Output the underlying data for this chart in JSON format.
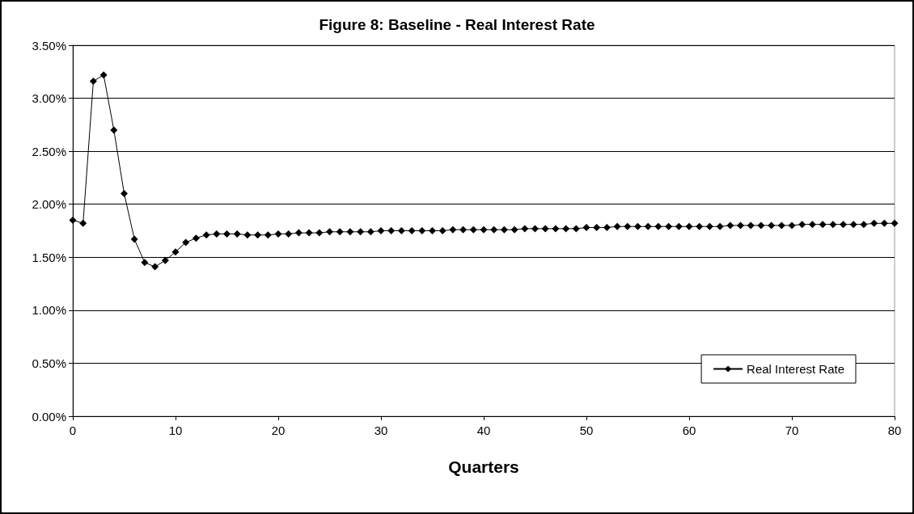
{
  "chart_data": {
    "type": "line",
    "title": "Figure 8: Baseline - Real Interest Rate",
    "xlabel": "Quarters",
    "x": [
      0,
      1,
      2,
      3,
      4,
      5,
      6,
      7,
      8,
      9,
      10,
      11,
      12,
      13,
      14,
      15,
      16,
      17,
      18,
      19,
      20,
      21,
      22,
      23,
      24,
      25,
      26,
      27,
      28,
      29,
      30,
      31,
      32,
      33,
      34,
      35,
      36,
      37,
      38,
      39,
      40,
      41,
      42,
      43,
      44,
      45,
      46,
      47,
      48,
      49,
      50,
      51,
      52,
      53,
      54,
      55,
      56,
      57,
      58,
      59,
      60,
      61,
      62,
      63,
      64,
      65,
      66,
      67,
      68,
      69,
      70,
      71,
      72,
      73,
      74,
      75,
      76,
      77,
      78,
      79,
      80
    ],
    "series": [
      {
        "name": "Real Interest Rate",
        "color": "#000000",
        "values": [
          1.85,
          1.82,
          3.16,
          3.22,
          2.7,
          2.1,
          1.67,
          1.45,
          1.41,
          1.47,
          1.55,
          1.64,
          1.68,
          1.71,
          1.72,
          1.72,
          1.72,
          1.71,
          1.71,
          1.71,
          1.72,
          1.72,
          1.73,
          1.73,
          1.73,
          1.74,
          1.74,
          1.74,
          1.74,
          1.74,
          1.75,
          1.75,
          1.75,
          1.75,
          1.75,
          1.75,
          1.75,
          1.76,
          1.76,
          1.76,
          1.76,
          1.76,
          1.76,
          1.76,
          1.77,
          1.77,
          1.77,
          1.77,
          1.77,
          1.77,
          1.78,
          1.78,
          1.78,
          1.79,
          1.79,
          1.79,
          1.79,
          1.79,
          1.79,
          1.79,
          1.79,
          1.79,
          1.79,
          1.79,
          1.8,
          1.8,
          1.8,
          1.8,
          1.8,
          1.8,
          1.8,
          1.81,
          1.81,
          1.81,
          1.81,
          1.81,
          1.81,
          1.81,
          1.82,
          1.82,
          1.82
        ]
      }
    ],
    "xlim": [
      0,
      80
    ],
    "xticks": [
      0,
      10,
      20,
      30,
      40,
      50,
      60,
      70,
      80
    ],
    "ylim": [
      0,
      3.5
    ],
    "yticks": [
      {
        "value": 0,
        "label": "0.00%"
      },
      {
        "value": 0.5,
        "label": "0.50%"
      },
      {
        "value": 1,
        "label": "1.00%"
      },
      {
        "value": 1.5,
        "label": "1.50%"
      },
      {
        "value": 2,
        "label": "2.00%"
      },
      {
        "value": 2.5,
        "label": "2.50%"
      },
      {
        "value": 3,
        "label": "3.00%"
      },
      {
        "value": 3.5,
        "label": "3.50%"
      }
    ],
    "grid": "y",
    "legend": "bottom right",
    "marker": "diamond",
    "line_style": "solid"
  }
}
